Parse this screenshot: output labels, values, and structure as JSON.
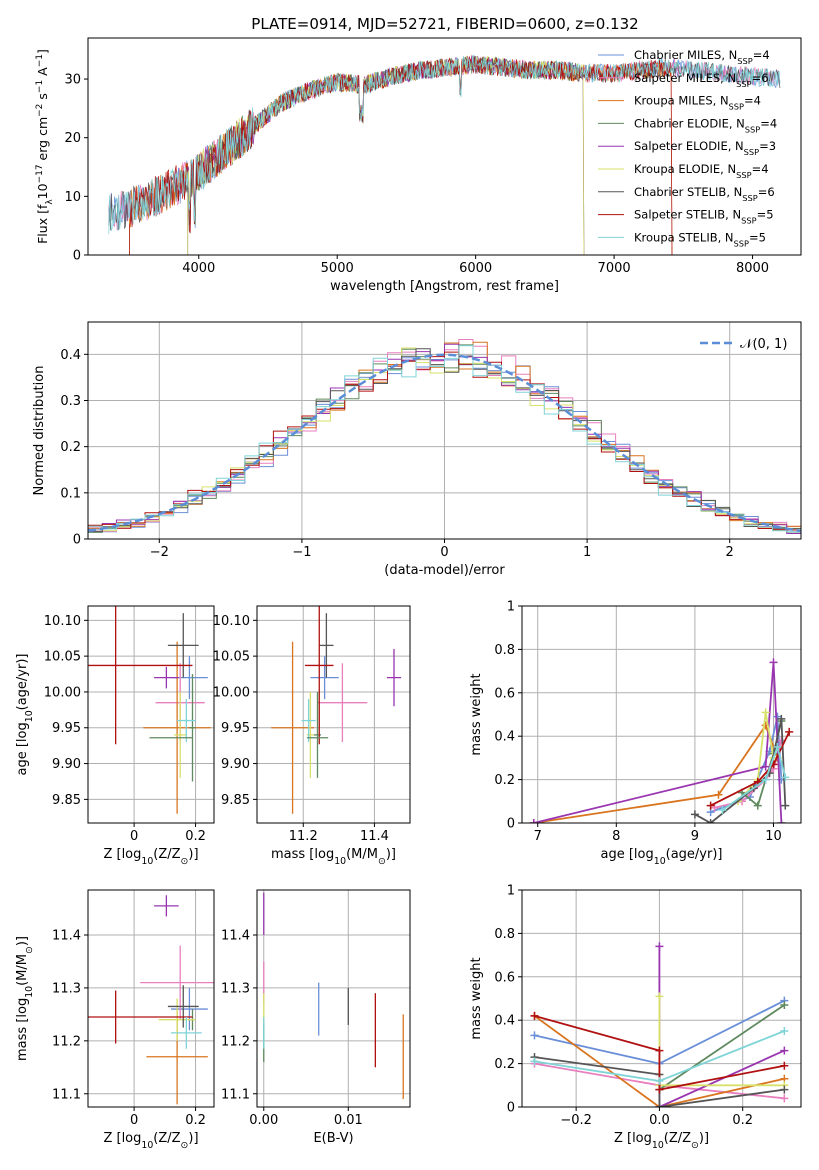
{
  "figure": {
    "title": "PLATE=0914, MJD=52721, FIBERID=0600, z=0.132"
  },
  "palette": {
    "Chabrier MILES": "#6a8fd8",
    "Salpeter MILES": "#e87fbf",
    "Kroupa MILES": "#d9741f",
    "Chabrier ELODIE": "#5f8a5f",
    "Salpeter ELODIE": "#9a35b0",
    "Kroupa ELODIE": "#d8e06a",
    "Chabrier STELIB": "#555555",
    "Salpeter STELIB": "#b01010",
    "Kroupa STELIB": "#7fd4d8"
  },
  "chart_data": [
    {
      "type": "line",
      "panel": "spectrum",
      "title": "PLATE=0914, MJD=52721, FIBERID=0600, z=0.132",
      "xlabel": "wavelength [Angstrom, rest frame]",
      "ylabel_parts": [
        "Flux [f",
        "λ",
        "10",
        "−17",
        " erg cm",
        "−2",
        " s",
        "−1",
        " A",
        "−1",
        "]"
      ],
      "xlim": [
        3200,
        8350
      ],
      "ylim": [
        0,
        37
      ],
      "xticks": [
        4000,
        5000,
        6000,
        7000,
        8000
      ],
      "yticks": [
        0,
        10,
        20,
        30
      ],
      "grid": false,
      "legend_position": "top-right",
      "continuum": {
        "x": [
          3350,
          3500,
          3650,
          3800,
          3950,
          4100,
          4250,
          4400,
          4600,
          4800,
          5000,
          5200,
          5400,
          5600,
          5800,
          6000,
          6200,
          6400,
          6600,
          6800,
          7000,
          7200,
          7400,
          7600,
          7800,
          8000,
          8200
        ],
        "y": [
          7,
          8,
          9.5,
          11.5,
          13,
          16,
          19,
          22,
          26,
          28,
          29.5,
          29,
          30.5,
          31.5,
          32,
          32.5,
          32,
          31.5,
          31.5,
          31,
          31,
          31.5,
          32,
          31.5,
          31,
          30.5,
          30
        ]
      },
      "series": [
        {
          "name_parts": [
            "Chabrier MILES, N",
            "SSP",
            "=4"
          ],
          "color_key": "Chabrier MILES",
          "start": 3350,
          "dropout": null
        },
        {
          "name_parts": [
            "Salpeter MILES, N",
            "SSP",
            "=6"
          ],
          "color_key": "Salpeter MILES",
          "start": 3350,
          "dropout": null
        },
        {
          "name_parts": [
            "Kroupa MILES, N",
            "SSP",
            "=4"
          ],
          "color_key": "Kroupa MILES",
          "start": 3500,
          "dropout": 7420
        },
        {
          "name_parts": [
            "Chabrier ELODIE, N",
            "SSP",
            "=4"
          ],
          "color_key": "Chabrier ELODIE",
          "start": 3920,
          "dropout": 6780
        },
        {
          "name_parts": [
            "Salpeter ELODIE, N",
            "SSP",
            "=3"
          ],
          "color_key": "Salpeter ELODIE",
          "start": 3920,
          "dropout": 6780
        },
        {
          "name_parts": [
            "Kroupa ELODIE, N",
            "SSP",
            "=4"
          ],
          "color_key": "Kroupa ELODIE",
          "start": 3920,
          "dropout": 6780
        },
        {
          "name_parts": [
            "Chabrier STELIB, N",
            "SSP",
            "=6"
          ],
          "color_key": "Chabrier STELIB",
          "start": 3350,
          "dropout": null
        },
        {
          "name_parts": [
            "Salpeter STELIB, N",
            "SSP",
            "=5"
          ],
          "color_key": "Salpeter STELIB",
          "start": 3500,
          "dropout": 7420
        },
        {
          "name_parts": [
            "Kroupa STELIB, N",
            "SSP",
            "=5"
          ],
          "color_key": "Kroupa STELIB",
          "start": 3350,
          "dropout": null
        }
      ]
    },
    {
      "type": "line",
      "panel": "residuals",
      "xlabel": "(data-model)/error",
      "ylabel": "Normed distribution",
      "xlim": [
        -2.5,
        2.5
      ],
      "ylim": [
        0,
        0.47
      ],
      "xticks": [
        -2,
        -1,
        0,
        1,
        2
      ],
      "yticks": [
        0.0,
        0.1,
        0.2,
        0.3,
        0.4
      ],
      "grid": true,
      "legend_position": "top-right",
      "reference_name": "𝒩(0, 1)",
      "reference": {
        "mean": 0,
        "sigma": 1
      },
      "bin_width": 0.1,
      "series_colors": [
        "Chabrier MILES",
        "Salpeter MILES",
        "Kroupa MILES",
        "Chabrier ELODIE",
        "Salpeter ELODIE",
        "Kroupa ELODIE",
        "Chabrier STELIB",
        "Salpeter STELIB",
        "Kroupa STELIB"
      ]
    },
    {
      "type": "scatter",
      "panel": "age-vs-Z",
      "xlabel_parts": [
        "Z [log",
        "10",
        "(Z/Z",
        "⊙",
        ")]"
      ],
      "ylabel_parts": [
        "age  [log",
        "10",
        "(age/yr)]"
      ],
      "xlim": [
        -0.15,
        0.26
      ],
      "ylim": [
        9.817,
        10.12
      ],
      "xticks": [
        0.0,
        0.2
      ],
      "yticks": [
        9.85,
        9.9,
        9.95,
        10.0,
        10.05,
        10.1
      ],
      "ytick_labels": [
        "9.85",
        "9.90",
        "9.95",
        "10.00",
        "10.05",
        "10.10"
      ],
      "grid": true,
      "points": [
        {
          "c": "Chabrier MILES",
          "x": 0.18,
          "xerr": 0.06,
          "y": 10.02,
          "yerr": 0.03
        },
        {
          "c": "Salpeter MILES",
          "x": 0.15,
          "xerr": 0.08,
          "y": 9.985,
          "yerr": 0.055
        },
        {
          "c": "Kroupa MILES",
          "x": 0.14,
          "xerr": 0.11,
          "y": 9.95,
          "yerr": 0.12
        },
        {
          "c": "Chabrier ELODIE",
          "x": 0.19,
          "xerr": 0.01,
          "y": 9.95,
          "yerr": 0.075
        },
        {
          "c": "Salpeter ELODIE",
          "x": 0.105,
          "xerr": 0.04,
          "y": 10.02,
          "yerr": 0.015
        },
        {
          "c": "Kroupa ELODIE",
          "x": 0.15,
          "xerr": 0.02,
          "y": 9.94,
          "yerr": 0.06
        },
        {
          "c": "Chabrier STELIB",
          "x": 0.16,
          "xerr": 0.05,
          "y": 10.065,
          "yerr": 0.045
        },
        {
          "c": "Salpeter STELIB",
          "x": -0.06,
          "xerr": 0.25,
          "y": 10.037,
          "yerr": 0.11
        },
        {
          "c": "Kroupa STELIB",
          "x": 0.17,
          "xerr": 0.03,
          "y": 9.96,
          "yerr": 0.03
        },
        {
          "c": "Chabrier ELODIE",
          "x": 0.12,
          "xerr": 0.07,
          "y": 9.936,
          "yerr": 0.0
        }
      ]
    },
    {
      "type": "scatter",
      "panel": "age-vs-mass",
      "xlabel_parts": [
        "mass [log",
        "10",
        "(M/M",
        "⊙",
        ")]"
      ],
      "xlim": [
        11.07,
        11.5
      ],
      "ylim": [
        9.817,
        10.12
      ],
      "xticks": [
        11.2,
        11.4
      ],
      "yticks": [
        9.85,
        9.9,
        9.95,
        10.0,
        10.05,
        10.1
      ],
      "ytick_labels": [
        "9.85",
        "9.90",
        "9.95",
        "10.00",
        "10.05",
        "10.10"
      ],
      "grid": true,
      "points": [
        {
          "c": "Chabrier MILES",
          "x": 11.26,
          "xerr": 0.04,
          "y": 10.02,
          "yerr": 0.03
        },
        {
          "c": "Salpeter MILES",
          "x": 11.31,
          "xerr": 0.07,
          "y": 9.985,
          "yerr": 0.055
        },
        {
          "c": "Kroupa MILES",
          "x": 11.17,
          "xerr": 0.06,
          "y": 9.95,
          "yerr": 0.12
        },
        {
          "c": "Chabrier ELODIE",
          "x": 11.24,
          "xerr": 0.01,
          "y": 9.94,
          "yerr": 0.06
        },
        {
          "c": "Salpeter ELODIE",
          "x": 11.455,
          "xerr": 0.02,
          "y": 10.02,
          "yerr": 0.04
        },
        {
          "c": "Kroupa ELODIE",
          "x": 11.22,
          "xerr": 0.01,
          "y": 9.94,
          "yerr": 0.06
        },
        {
          "c": "Chabrier STELIB",
          "x": 11.265,
          "xerr": 0.02,
          "y": 10.065,
          "yerr": 0.045
        },
        {
          "c": "Salpeter STELIB",
          "x": 11.245,
          "xerr": 0.04,
          "y": 10.037,
          "yerr": 0.11
        },
        {
          "c": "Kroupa STELIB",
          "x": 11.215,
          "xerr": 0.02,
          "y": 9.96,
          "yerr": 0.03
        },
        {
          "c": "Chabrier ELODIE",
          "x": 11.24,
          "xerr": 0.03,
          "y": 9.936,
          "yerr": 0.0
        }
      ]
    },
    {
      "type": "line",
      "panel": "weight-vs-age",
      "xlabel_parts": [
        "age  [log",
        "10",
        "(age/yr)]"
      ],
      "ylabel": "mass weight",
      "xlim": [
        6.8,
        10.35
      ],
      "ylim": [
        0,
        1.0
      ],
      "xticks": [
        7,
        8,
        9,
        10
      ],
      "yticks": [
        0.0,
        0.2,
        0.4,
        0.6,
        0.8,
        1.0
      ],
      "grid": true,
      "series": [
        {
          "c": "Chabrier MILES",
          "x": [
            9.2,
            9.7,
            9.95,
            10.05,
            10.1
          ],
          "y": [
            0.05,
            0.12,
            0.33,
            0.49,
            0.2
          ]
        },
        {
          "c": "Salpeter MILES",
          "x": [
            9.25,
            9.6,
            9.9,
            10.0,
            10.1
          ],
          "y": [
            0.07,
            0.1,
            0.2,
            0.25,
            0.38
          ]
        },
        {
          "c": "Kroupa MILES",
          "x": [
            6.95,
            9.3,
            9.9,
            10.05
          ],
          "y": [
            0.0,
            0.13,
            0.45,
            0.3
          ]
        },
        {
          "c": "Chabrier ELODIE",
          "x": [
            9.6,
            9.8,
            10.0,
            10.1
          ],
          "y": [
            0.14,
            0.08,
            0.32,
            0.47
          ]
        },
        {
          "c": "Salpeter ELODIE",
          "x": [
            6.95,
            9.9,
            10.0,
            10.1
          ],
          "y": [
            0.0,
            0.26,
            0.74,
            0.0
          ]
        },
        {
          "c": "Kroupa ELODIE",
          "x": [
            9.55,
            9.8,
            9.9,
            10.0
          ],
          "y": [
            0.1,
            0.2,
            0.51,
            0.3
          ]
        },
        {
          "c": "Chabrier STELIB",
          "x": [
            9.0,
            9.2,
            9.75,
            9.95,
            10.1,
            10.15
          ],
          "y": [
            0.04,
            0.0,
            0.16,
            0.23,
            0.48,
            0.08
          ]
        },
        {
          "c": "Salpeter STELIB",
          "x": [
            9.2,
            9.8,
            10.0,
            10.2
          ],
          "y": [
            0.08,
            0.19,
            0.27,
            0.42
          ]
        },
        {
          "c": "Kroupa STELIB",
          "x": [
            9.35,
            9.9,
            10.05,
            10.15
          ],
          "y": [
            0.06,
            0.2,
            0.35,
            0.21
          ]
        }
      ]
    },
    {
      "type": "scatter",
      "panel": "mass-vs-Z",
      "xlabel_parts": [
        "Z [log",
        "10",
        "(Z/Z",
        "⊙",
        ")]"
      ],
      "ylabel_parts": [
        "mass [log",
        "10",
        "(M/M",
        "⊙",
        ")]"
      ],
      "xlim": [
        -0.15,
        0.26
      ],
      "ylim": [
        11.075,
        11.485
      ],
      "xticks": [
        0.0,
        0.2
      ],
      "yticks": [
        11.1,
        11.2,
        11.3,
        11.4
      ],
      "ytick_labels": [
        "11.1",
        "11.2",
        "11.3",
        "11.4"
      ],
      "grid": true,
      "points": [
        {
          "c": "Chabrier MILES",
          "x": 0.18,
          "xerr": 0.06,
          "y": 11.26,
          "yerr": 0.04
        },
        {
          "c": "Salpeter MILES",
          "x": 0.15,
          "xerr": 0.13,
          "y": 11.31,
          "yerr": 0.07
        },
        {
          "c": "Kroupa MILES",
          "x": 0.14,
          "xerr": 0.1,
          "y": 11.17,
          "yerr": 0.09
        },
        {
          "c": "Chabrier ELODIE",
          "x": 0.19,
          "xerr": 0.01,
          "y": 11.24,
          "yerr": 0.02
        },
        {
          "c": "Salpeter ELODIE",
          "x": 0.105,
          "xerr": 0.04,
          "y": 11.455,
          "yerr": 0.02
        },
        {
          "c": "Kroupa ELODIE",
          "x": 0.14,
          "xerr": 0.06,
          "y": 11.24,
          "yerr": 0.04
        },
        {
          "c": "Chabrier STELIB",
          "x": 0.16,
          "xerr": 0.05,
          "y": 11.265,
          "yerr": 0.04
        },
        {
          "c": "Salpeter STELIB",
          "x": -0.06,
          "xerr": 0.25,
          "y": 11.245,
          "yerr": 0.05
        },
        {
          "c": "Kroupa STELIB",
          "x": 0.17,
          "xerr": 0.05,
          "y": 11.215,
          "yerr": 0.03
        }
      ]
    },
    {
      "type": "scatter",
      "panel": "mass-vs-EBV",
      "xlabel": "E(B-V)",
      "xlim": [
        -0.0008,
        0.0173
      ],
      "ylim": [
        11.075,
        11.485
      ],
      "xticks": [
        0.0,
        0.01
      ],
      "xtick_labels": [
        "0.00",
        "0.01"
      ],
      "yticks": [
        11.1,
        11.2,
        11.3,
        11.4
      ],
      "ytick_labels": [
        "11.1",
        "11.2",
        "11.3",
        "11.4"
      ],
      "grid": true,
      "points": [
        {
          "c": "Chabrier MILES",
          "x": 0.0065,
          "xerr": 0.0,
          "y": 11.26,
          "yerr": 0.05
        },
        {
          "c": "Salpeter MILES",
          "x": 0.0,
          "xerr": 0.0,
          "y": 11.31,
          "yerr": 0.04
        },
        {
          "c": "Kroupa MILES",
          "x": 0.0165,
          "xerr": 0.0,
          "y": 11.17,
          "yerr": 0.08
        },
        {
          "c": "Chabrier ELODIE",
          "x": 0.0,
          "xerr": 0.0,
          "y": 11.2,
          "yerr": 0.04
        },
        {
          "c": "Salpeter ELODIE",
          "x": 0.0,
          "xerr": 0.0,
          "y": 11.44,
          "yerr": 0.04
        },
        {
          "c": "Kroupa ELODIE",
          "x": 0.0,
          "xerr": 0.0,
          "y": 11.26,
          "yerr": 0.03
        },
        {
          "c": "Chabrier STELIB",
          "x": 0.01,
          "xerr": 0.0,
          "y": 11.265,
          "yerr": 0.035
        },
        {
          "c": "Salpeter STELIB",
          "x": 0.0132,
          "xerr": 0.0,
          "y": 11.22,
          "yerr": 0.07
        },
        {
          "c": "Kroupa STELIB",
          "x": 0.0,
          "xerr": 0.0,
          "y": 11.215,
          "yerr": 0.03
        }
      ]
    },
    {
      "type": "line",
      "panel": "weight-vs-Z",
      "xlabel_parts": [
        "Z [log",
        "10",
        "(Z/Z",
        "⊙",
        ")]"
      ],
      "ylabel": "mass weight",
      "xlim": [
        -0.33,
        0.34
      ],
      "ylim": [
        0,
        1.0
      ],
      "xticks": [
        -0.2,
        0.0,
        0.2
      ],
      "xtick_labels": [
        "−0.2",
        "0.0",
        "0.2"
      ],
      "yticks": [
        0.0,
        0.2,
        0.4,
        0.6,
        0.8,
        1.0
      ],
      "grid": true,
      "series": [
        {
          "c": "Chabrier MILES",
          "x": [
            -0.3,
            0.0,
            0.3
          ],
          "y": [
            0.33,
            0.2,
            0.49
          ]
        },
        {
          "c": "Salpeter MILES",
          "x": [
            -0.3,
            0.0,
            0.3
          ],
          "y": [
            0.2,
            0.1,
            0.04
          ]
        },
        {
          "c": "Kroupa MILES",
          "x": [
            -0.3,
            0.0,
            0.3
          ],
          "y": [
            0.42,
            0.0,
            0.13
          ]
        },
        {
          "c": "Chabrier ELODIE",
          "x": [
            0.0,
            0.3
          ],
          "y": [
            0.08,
            0.47
          ]
        },
        {
          "c": "Salpeter ELODIE",
          "x": [
            0.0,
            0.0,
            0.3
          ],
          "y": [
            0.74,
            0.0,
            0.26
          ]
        },
        {
          "c": "Kroupa ELODIE",
          "x": [
            0.0,
            0.0,
            0.3
          ],
          "y": [
            0.51,
            0.1,
            0.1
          ]
        },
        {
          "c": "Chabrier STELIB",
          "x": [
            -0.3,
            0.0,
            0.0,
            0.3
          ],
          "y": [
            0.23,
            0.15,
            0.0,
            0.08
          ]
        },
        {
          "c": "Salpeter STELIB",
          "x": [
            -0.3,
            0.0,
            0.0,
            0.3
          ],
          "y": [
            0.42,
            0.26,
            0.08,
            0.19
          ]
        },
        {
          "c": "Kroupa STELIB",
          "x": [
            -0.3,
            0.0,
            0.3
          ],
          "y": [
            0.21,
            0.12,
            0.35
          ]
        }
      ]
    }
  ]
}
